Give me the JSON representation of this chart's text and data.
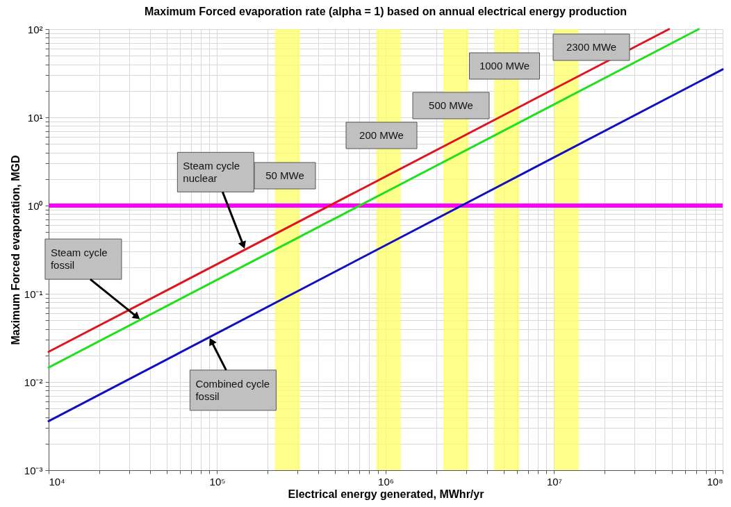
{
  "chart_data": {
    "type": "line",
    "title": "Maximum Forced evaporation rate (alpha = 1) based on annual electrical energy production",
    "xlabel": "Electrical energy generated, MWhr/yr",
    "ylabel": "Maximum Forced evaporation, MGD",
    "series": [
      {
        "color": "#e0141e",
        "x": [
          10000,
          48000000
        ],
        "values": [
          0.022,
          100
        ]
      },
      {
        "color": "#22e01e",
        "x": [
          10000,
          72000000
        ],
        "values": [
          0.0146,
          100
        ]
      },
      {
        "color": "#1010c0",
        "x": [
          10000,
          100000000
        ],
        "values": [
          0.0036,
          35
        ]
      }
    ],
    "log": "xy",
    "grid": true,
    "line_style": "solid",
    "marker": "none",
    "xlim": [
      10000,
      100000000
    ],
    "ylim": [
      0.001,
      100
    ],
    "xticks": [
      {
        "value": 10000,
        "label": "10⁴"
      },
      {
        "value": 20000,
        "label": null
      },
      {
        "value": 30000,
        "label": null
      },
      {
        "value": 40000,
        "label": null
      },
      {
        "value": 50000,
        "label": null
      },
      {
        "value": 60000,
        "label": null
      },
      {
        "value": 70000,
        "label": null
      },
      {
        "value": 80000,
        "label": null
      },
      {
        "value": 90000,
        "label": null
      },
      {
        "value": 100000,
        "label": "10⁵"
      },
      {
        "value": 200000,
        "label": null
      },
      {
        "value": 300000,
        "label": null
      },
      {
        "value": 400000,
        "label": null
      },
      {
        "value": 500000,
        "label": null
      },
      {
        "value": 600000,
        "label": null
      },
      {
        "value": 700000,
        "label": null
      },
      {
        "value": 800000,
        "label": null
      },
      {
        "value": 900000,
        "label": null
      },
      {
        "value": 1000000,
        "label": "10⁶"
      },
      {
        "value": 2000000,
        "label": null
      },
      {
        "value": 3000000,
        "label": null
      },
      {
        "value": 4000000,
        "label": null
      },
      {
        "value": 5000000,
        "label": null
      },
      {
        "value": 6000000,
        "label": null
      },
      {
        "value": 7000000,
        "label": null
      },
      {
        "value": 8000000,
        "label": null
      },
      {
        "value": 9000000,
        "label": null
      },
      {
        "value": 10000000,
        "label": "10⁷"
      },
      {
        "value": 20000000,
        "label": null
      },
      {
        "value": 30000000,
        "label": null
      },
      {
        "value": 40000000,
        "label": null
      },
      {
        "value": 50000000,
        "label": null
      },
      {
        "value": 60000000,
        "label": null
      },
      {
        "value": 70000000,
        "label": null
      },
      {
        "value": 80000000,
        "label": null
      },
      {
        "value": 90000000,
        "label": null
      },
      {
        "value": 100000000,
        "label": "10⁸"
      }
    ],
    "yticks": [
      {
        "value": 0.001,
        "label": "10⁻³"
      },
      {
        "value": 0.002,
        "label": null
      },
      {
        "value": 0.003,
        "label": null
      },
      {
        "value": 0.004,
        "label": null
      },
      {
        "value": 0.005,
        "label": null
      },
      {
        "value": 0.006,
        "label": null
      },
      {
        "value": 0.007,
        "label": null
      },
      {
        "value": 0.008,
        "label": null
      },
      {
        "value": 0.009,
        "label": null
      },
      {
        "value": 0.01,
        "label": "10⁻²"
      },
      {
        "value": 0.02,
        "label": null
      },
      {
        "value": 0.03,
        "label": null
      },
      {
        "value": 0.04,
        "label": null
      },
      {
        "value": 0.05,
        "label": null
      },
      {
        "value": 0.06,
        "label": null
      },
      {
        "value": 0.07,
        "label": null
      },
      {
        "value": 0.08,
        "label": null
      },
      {
        "value": 0.09,
        "label": null
      },
      {
        "value": 0.1,
        "label": "10⁻¹"
      },
      {
        "value": 0.2,
        "label": null
      },
      {
        "value": 0.3,
        "label": null
      },
      {
        "value": 0.4,
        "label": null
      },
      {
        "value": 0.5,
        "label": null
      },
      {
        "value": 0.6,
        "label": null
      },
      {
        "value": 0.7,
        "label": null
      },
      {
        "value": 0.8,
        "label": null
      },
      {
        "value": 0.9,
        "label": null
      },
      {
        "value": 1,
        "label": "10⁰"
      },
      {
        "value": 2,
        "label": null
      },
      {
        "value": 3,
        "label": null
      },
      {
        "value": 4,
        "label": null
      },
      {
        "value": 5,
        "label": null
      },
      {
        "value": 6,
        "label": null
      },
      {
        "value": 7,
        "label": null
      },
      {
        "value": 8,
        "label": null
      },
      {
        "value": 9,
        "label": null
      },
      {
        "value": 10,
        "label": "10¹"
      },
      {
        "value": 20,
        "label": null
      },
      {
        "value": 30,
        "label": null
      },
      {
        "value": 40,
        "label": null
      },
      {
        "value": 50,
        "label": null
      },
      {
        "value": 60,
        "label": null
      },
      {
        "value": 70,
        "label": null
      },
      {
        "value": 80,
        "label": null
      },
      {
        "value": 90,
        "label": null
      },
      {
        "value": 100,
        "label": "10²"
      }
    ],
    "ref_lines": [
      {
        "axis": "y",
        "value": 1,
        "color": "#ff00ff"
      }
    ],
    "bands": [
      {
        "axis": "x",
        "from": 220000,
        "to": 310000,
        "label": "50 MWe",
        "color": "#ffff66"
      },
      {
        "axis": "x",
        "from": 880000,
        "to": 1230000,
        "label": "200 MWe",
        "color": "#ffff66"
      },
      {
        "axis": "x",
        "from": 2200000,
        "to": 3100000,
        "label": "500 MWe",
        "color": "#ffff66"
      },
      {
        "axis": "x",
        "from": 4400000,
        "to": 6200000,
        "label": "1000 MWe",
        "color": "#ffff66"
      },
      {
        "axis": "x",
        "from": 10000000,
        "to": 14000000,
        "label": "2300 MWe",
        "color": "#ffff66"
      }
    ],
    "annotations": [
      {
        "text": "Steam cycle\nnuclear",
        "x": 146000,
        "y": 0.32
      },
      {
        "text": "Steam cycle\nfossil",
        "x": 35000,
        "y": 0.051
      },
      {
        "text": "Combined cycle\nfossil",
        "x": 90000,
        "y": 0.032
      }
    ]
  }
}
